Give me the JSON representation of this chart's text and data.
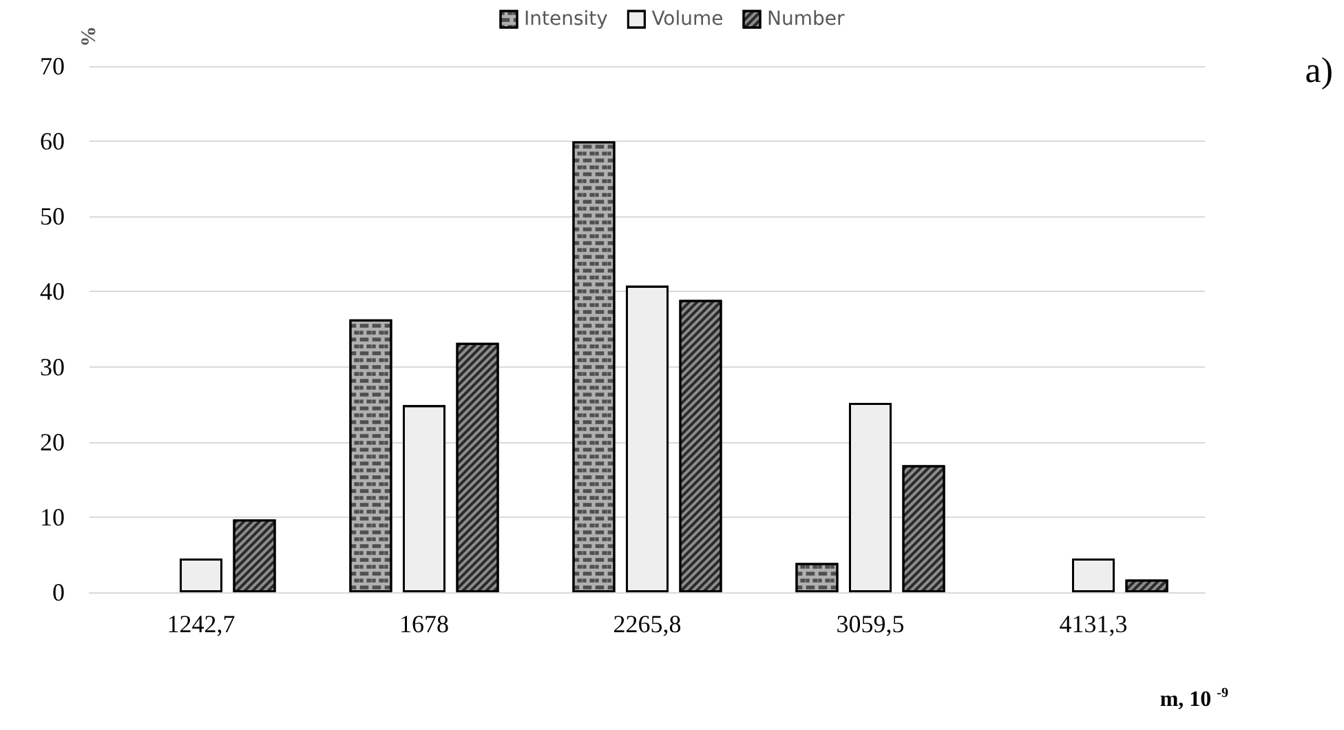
{
  "chart_data": {
    "type": "bar",
    "categories": [
      "1242,7",
      "1678",
      "2265,8",
      "3059,5",
      "4131,3"
    ],
    "series": [
      {
        "name": "Intensity",
        "color": "#b0b0b0",
        "values": [
          null,
          36.3,
          60,
          3.9,
          null
        ]
      },
      {
        "name": "Volume",
        "color": "#eeeeee",
        "values": [
          4.5,
          24.9,
          40.8,
          25.2,
          4.5
        ]
      },
      {
        "name": "Number",
        "color": "#8c8c8c",
        "values": [
          9.7,
          33.2,
          38.9,
          16.9,
          1.7
        ]
      }
    ],
    "ylabel": "%",
    "xlabel": "m, 10 $^{-9}$",
    "annotations": [
      "a)"
    ],
    "ylim": [
      0,
      70
    ],
    "yticks": [
      0,
      10,
      20,
      30,
      40,
      50,
      60,
      70
    ],
    "grid": "y",
    "legend": "top"
  }
}
